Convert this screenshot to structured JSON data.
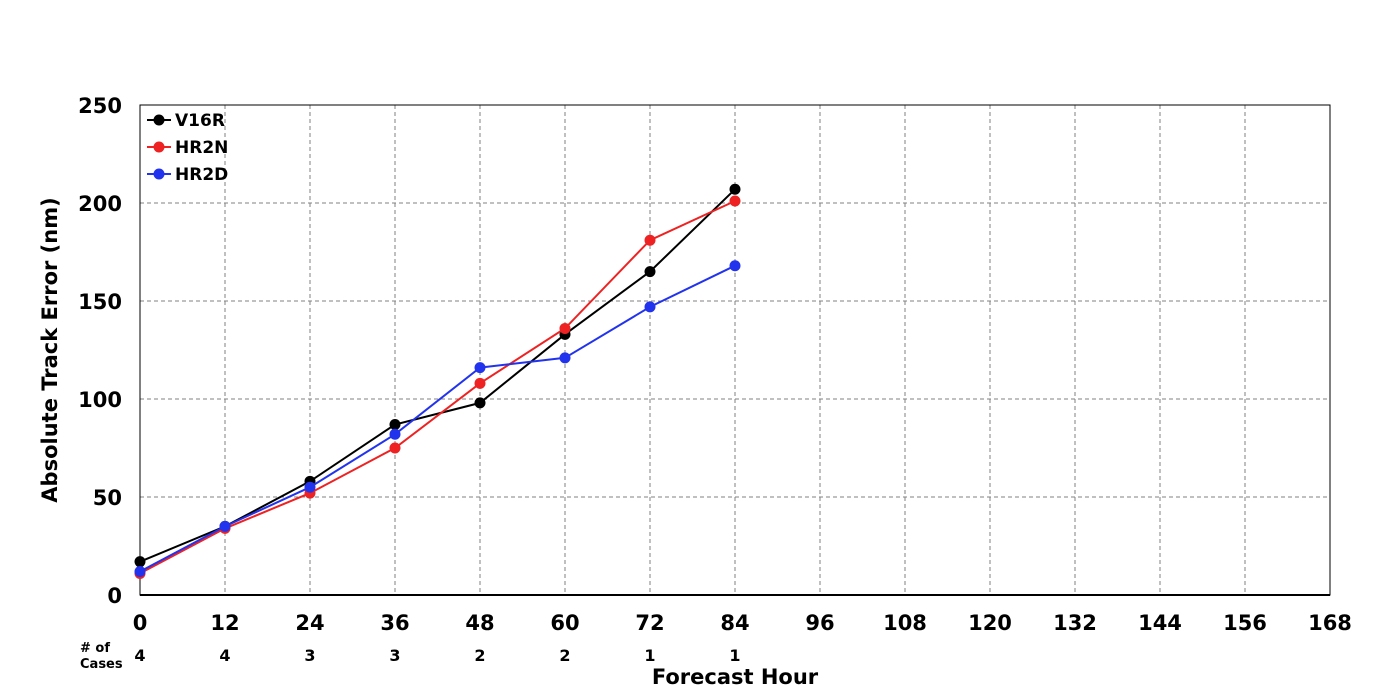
{
  "chart_data": {
    "type": "line",
    "title": "",
    "xlabel": "Forecast Hour",
    "ylabel": "Absolute Track Error (nm)",
    "xlim": [
      0,
      168
    ],
    "ylim": [
      0,
      250
    ],
    "x_ticks": [
      0,
      12,
      24,
      36,
      48,
      60,
      72,
      84,
      96,
      108,
      120,
      132,
      144,
      156,
      168
    ],
    "y_ticks": [
      0,
      50,
      100,
      150,
      200,
      250
    ],
    "grid": true,
    "legend_position": "top-left",
    "series": [
      {
        "name": "V16R",
        "color": "#000000",
        "x": [
          0,
          12,
          24,
          36,
          48,
          60,
          72,
          84
        ],
        "values": [
          17,
          35,
          58,
          87,
          98,
          133,
          165,
          207
        ]
      },
      {
        "name": "HR2N",
        "color": "#ee2222",
        "x": [
          0,
          12,
          24,
          36,
          48,
          60,
          72,
          84
        ],
        "values": [
          11,
          34,
          52,
          75,
          108,
          136,
          181,
          201
        ]
      },
      {
        "name": "HR2D",
        "color": "#2233ee",
        "x": [
          0,
          12,
          24,
          36,
          48,
          60,
          72,
          84
        ],
        "values": [
          12,
          35,
          55,
          82,
          116,
          121,
          147,
          168
        ]
      }
    ],
    "cases": {
      "label_line1": "# of",
      "label_line2": "Cases",
      "x": [
        0,
        12,
        24,
        36,
        48,
        60,
        72,
        84
      ],
      "values": [
        "4",
        "4",
        "3",
        "3",
        "2",
        "2",
        "1",
        "1"
      ]
    }
  }
}
